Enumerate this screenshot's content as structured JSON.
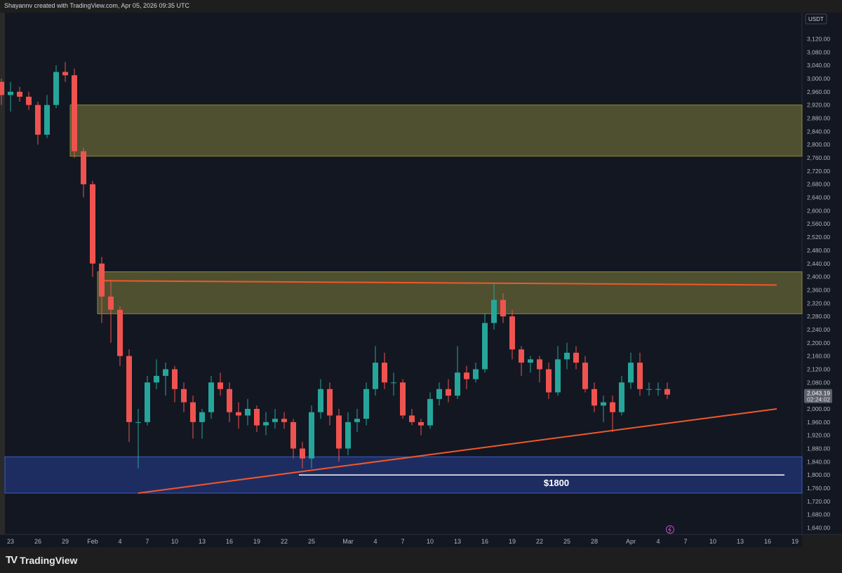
{
  "header": {
    "attribution": "Shayannv created with TradingView.com, Apr 05, 2026 09:35 UTC"
  },
  "footer": {
    "brand": "TradingView"
  },
  "currency": "USDT",
  "last_price": {
    "price": "2,043.19",
    "countdown": "02:24:02"
  },
  "colors": {
    "up": "#26a69a",
    "down": "#ef5350",
    "background": "#131722",
    "supply_zone": "#8b8a3c",
    "demand_zone": "#2a44a0",
    "trendline": "#f0582a",
    "level_line": "#ffffff"
  },
  "chart_data": {
    "type": "candlestick",
    "title": "",
    "ylim": [
      1620,
      3170
    ],
    "y_ticks": [
      1640,
      1680,
      1720,
      1760,
      1800,
      1840,
      1880,
      1920,
      1960,
      2000,
      2040,
      2080,
      2120,
      2160,
      2200,
      2240,
      2280,
      2320,
      2360,
      2400,
      2440,
      2480,
      2520,
      2560,
      2600,
      2640,
      2680,
      2720,
      2760,
      2800,
      2840,
      2880,
      2920,
      2960,
      3000,
      3040,
      3080,
      3120,
      3160
    ],
    "x_ticks": [
      {
        "date": "2026-01-23",
        "label": "23"
      },
      {
        "date": "2026-01-26",
        "label": "26"
      },
      {
        "date": "2026-01-29",
        "label": "29"
      },
      {
        "date": "2026-02-01",
        "label": "Feb"
      },
      {
        "date": "2026-02-04",
        "label": "4"
      },
      {
        "date": "2026-02-07",
        "label": "7"
      },
      {
        "date": "2026-02-10",
        "label": "10"
      },
      {
        "date": "2026-02-13",
        "label": "13"
      },
      {
        "date": "2026-02-16",
        "label": "16"
      },
      {
        "date": "2026-02-19",
        "label": "19"
      },
      {
        "date": "2026-02-22",
        "label": "22"
      },
      {
        "date": "2026-02-25",
        "label": "25"
      },
      {
        "date": "2026-03-01",
        "label": "Mar"
      },
      {
        "date": "2026-03-04",
        "label": "4"
      },
      {
        "date": "2026-03-07",
        "label": "7"
      },
      {
        "date": "2026-03-10",
        "label": "10"
      },
      {
        "date": "2026-03-13",
        "label": "13"
      },
      {
        "date": "2026-03-16",
        "label": "16"
      },
      {
        "date": "2026-03-19",
        "label": "19"
      },
      {
        "date": "2026-03-22",
        "label": "22"
      },
      {
        "date": "2026-03-25",
        "label": "25"
      },
      {
        "date": "2026-03-28",
        "label": "28"
      },
      {
        "date": "2026-04-01",
        "label": "Apr"
      },
      {
        "date": "2026-04-04",
        "label": "4"
      },
      {
        "date": "2026-04-07",
        "label": "7"
      },
      {
        "date": "2026-04-10",
        "label": "10"
      },
      {
        "date": "2026-04-13",
        "label": "13"
      },
      {
        "date": "2026-04-16",
        "label": "16"
      },
      {
        "date": "2026-04-19",
        "label": "19"
      }
    ],
    "candles_columns": [
      "date",
      "open",
      "high",
      "low",
      "close"
    ],
    "candles": [
      [
        "2026-01-22",
        2990,
        3000,
        2920,
        2950
      ],
      [
        "2026-01-23",
        2950,
        2990,
        2900,
        2960
      ],
      [
        "2026-01-24",
        2960,
        2975,
        2930,
        2945
      ],
      [
        "2026-01-25",
        2945,
        2960,
        2905,
        2920
      ],
      [
        "2026-01-26",
        2920,
        2930,
        2800,
        2830
      ],
      [
        "2026-01-27",
        2830,
        2950,
        2820,
        2920
      ],
      [
        "2026-01-28",
        2920,
        3040,
        2910,
        3020
      ],
      [
        "2026-01-29",
        3020,
        3050,
        2990,
        3010
      ],
      [
        "2026-01-30",
        3010,
        3030,
        2760,
        2780
      ],
      [
        "2026-01-31",
        2780,
        2790,
        2640,
        2680
      ],
      [
        "2026-02-01",
        2680,
        2690,
        2400,
        2440
      ],
      [
        "2026-02-02",
        2440,
        2460,
        2260,
        2340
      ],
      [
        "2026-02-03",
        2340,
        2390,
        2200,
        2300
      ],
      [
        "2026-02-04",
        2300,
        2310,
        2130,
        2160
      ],
      [
        "2026-02-05",
        2160,
        2180,
        1900,
        1960
      ],
      [
        "2026-02-06",
        1960,
        2000,
        1820,
        1960
      ],
      [
        "2026-02-07",
        1960,
        2100,
        1950,
        2080
      ],
      [
        "2026-02-08",
        2080,
        2150,
        2060,
        2100
      ],
      [
        "2026-02-09",
        2100,
        2140,
        2040,
        2120
      ],
      [
        "2026-02-10",
        2120,
        2130,
        2020,
        2060
      ],
      [
        "2026-02-11",
        2060,
        2080,
        1990,
        2020
      ],
      [
        "2026-02-12",
        2020,
        2040,
        1910,
        1960
      ],
      [
        "2026-02-13",
        1960,
        2000,
        1910,
        1990
      ],
      [
        "2026-02-14",
        1990,
        2100,
        1970,
        2080
      ],
      [
        "2026-02-15",
        2080,
        2110,
        2040,
        2060
      ],
      [
        "2026-02-16",
        2060,
        2080,
        1960,
        1990
      ],
      [
        "2026-02-17",
        1990,
        2020,
        1940,
        1980
      ],
      [
        "2026-02-18",
        1980,
        2030,
        1950,
        2000
      ],
      [
        "2026-02-19",
        2000,
        2010,
        1930,
        1950
      ],
      [
        "2026-02-20",
        1950,
        1990,
        1920,
        1960
      ],
      [
        "2026-02-21",
        1960,
        2000,
        1940,
        1970
      ],
      [
        "2026-02-22",
        1970,
        1990,
        1940,
        1960
      ],
      [
        "2026-02-23",
        1960,
        1970,
        1850,
        1880
      ],
      [
        "2026-02-24",
        1880,
        1900,
        1820,
        1850
      ],
      [
        "2026-02-25",
        1850,
        2010,
        1820,
        1990
      ],
      [
        "2026-02-26",
        1990,
        2090,
        1970,
        2060
      ],
      [
        "2026-02-27",
        2060,
        2080,
        1950,
        1980
      ],
      [
        "2026-02-28",
        1980,
        2000,
        1840,
        1880
      ],
      [
        "2026-03-01",
        1880,
        1990,
        1860,
        1960
      ],
      [
        "2026-03-02",
        1960,
        2000,
        1930,
        1970
      ],
      [
        "2026-03-03",
        1970,
        2080,
        1950,
        2060
      ],
      [
        "2026-03-04",
        2060,
        2190,
        2040,
        2140
      ],
      [
        "2026-03-05",
        2140,
        2170,
        2060,
        2080
      ],
      [
        "2026-03-06",
        2080,
        2110,
        2040,
        2080
      ],
      [
        "2026-03-07",
        2080,
        2090,
        1970,
        1980
      ],
      [
        "2026-03-08",
        1980,
        2000,
        1950,
        1960
      ],
      [
        "2026-03-09",
        1960,
        1970,
        1920,
        1950
      ],
      [
        "2026-03-10",
        1950,
        2050,
        1940,
        2030
      ],
      [
        "2026-03-11",
        2030,
        2080,
        2010,
        2060
      ],
      [
        "2026-03-12",
        2060,
        2090,
        2020,
        2040
      ],
      [
        "2026-03-13",
        2040,
        2190,
        2030,
        2110
      ],
      [
        "2026-03-14",
        2110,
        2130,
        2060,
        2090
      ],
      [
        "2026-03-15",
        2090,
        2140,
        2080,
        2120
      ],
      [
        "2026-03-16",
        2120,
        2290,
        2110,
        2260
      ],
      [
        "2026-03-17",
        2260,
        2380,
        2240,
        2330
      ],
      [
        "2026-03-18",
        2330,
        2350,
        2260,
        2280
      ],
      [
        "2026-03-19",
        2280,
        2300,
        2150,
        2180
      ],
      [
        "2026-03-20",
        2180,
        2190,
        2100,
        2140
      ],
      [
        "2026-03-21",
        2140,
        2160,
        2110,
        2150
      ],
      [
        "2026-03-22",
        2150,
        2160,
        2080,
        2120
      ],
      [
        "2026-03-23",
        2120,
        2140,
        2030,
        2050
      ],
      [
        "2026-03-24",
        2050,
        2190,
        2040,
        2150
      ],
      [
        "2026-03-25",
        2150,
        2200,
        2120,
        2170
      ],
      [
        "2026-03-26",
        2170,
        2190,
        2120,
        2140
      ],
      [
        "2026-03-27",
        2140,
        2160,
        2050,
        2060
      ],
      [
        "2026-03-28",
        2060,
        2080,
        1990,
        2010
      ],
      [
        "2026-03-29",
        2010,
        2040,
        1960,
        2020
      ],
      [
        "2026-03-30",
        2020,
        2040,
        1930,
        1990
      ],
      [
        "2026-03-31",
        1990,
        2100,
        1980,
        2080
      ],
      [
        "2026-04-01",
        2080,
        2170,
        2060,
        2140
      ],
      [
        "2026-04-02",
        2140,
        2170,
        2040,
        2060
      ],
      [
        "2026-04-03",
        2060,
        2080,
        2040,
        2060
      ],
      [
        "2026-04-04",
        2060,
        2080,
        2040,
        2060
      ],
      [
        "2026-04-05",
        2060,
        2080,
        2030,
        2043.19
      ]
    ],
    "zones": [
      {
        "kind": "supply",
        "from": "2026-01-30",
        "low": 2765,
        "high": 2920
      },
      {
        "kind": "supply",
        "from": "2026-02-02",
        "low": 2288,
        "high": 2415
      },
      {
        "kind": "demand",
        "from": "2026-01-22",
        "low": 1745,
        "high": 1855
      }
    ],
    "trendlines": [
      {
        "kind": "resistance",
        "start": [
          "2026-02-02",
          2388
        ],
        "end": [
          "2026-04-17",
          2375
        ]
      },
      {
        "kind": "support",
        "start": [
          "2026-02-06",
          1745
        ],
        "end": [
          "2026-04-17",
          2000
        ]
      }
    ],
    "levels": [
      {
        "price": 1800,
        "from": "2026-02-24",
        "label": "$1800"
      }
    ]
  }
}
